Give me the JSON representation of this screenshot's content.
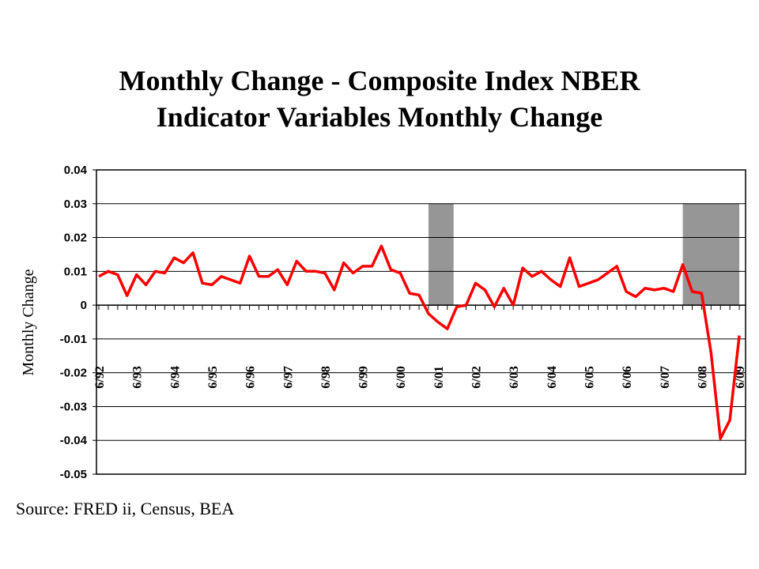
{
  "chart_data": {
    "type": "line",
    "title_line1": "Monthly Change - Composite Index NBER",
    "title_line2": "Indicator Variables Monthly Change",
    "ylabel": "Monthly Change",
    "source": "Source: FRED ii, Census, BEA",
    "ylim": [
      -0.05,
      0.04
    ],
    "yticks": [
      "0.04",
      "0.03",
      "0.02",
      "0.01",
      "0",
      "-0.01",
      "-0.02",
      "-0.03",
      "-0.04",
      "-0.05"
    ],
    "ytick_values": [
      0.04,
      0.03,
      0.02,
      0.01,
      0,
      -0.01,
      -0.02,
      -0.03,
      -0.04,
      -0.05
    ],
    "xlabels": [
      "6/92",
      "6/93",
      "6/94",
      "6/95",
      "6/96",
      "6/97",
      "6/98",
      "6/99",
      "6/00",
      "6/01",
      "6/02",
      "6/03",
      "6/04",
      "6/05",
      "6/06",
      "6/07",
      "6/08",
      "6/09"
    ],
    "grid": "horizontal",
    "line_color": "#ff0000",
    "shade_color": "#969696",
    "recessions": [
      {
        "start": "2001-03",
        "end": "2001-11",
        "top": 0.03
      },
      {
        "start": "2007-12",
        "end": "2009-06",
        "top": 0.03
      }
    ],
    "points": [
      [
        "1992-06",
        0.0085
      ],
      [
        "1992-09",
        0.01
      ],
      [
        "1992-12",
        0.009
      ],
      [
        "1993-03",
        0.0028
      ],
      [
        "1993-06",
        0.009
      ],
      [
        "1993-09",
        0.006
      ],
      [
        "1993-12",
        0.01
      ],
      [
        "1994-03",
        0.0095
      ],
      [
        "1994-06",
        0.014
      ],
      [
        "1994-09",
        0.0125
      ],
      [
        "1994-12",
        0.0155
      ],
      [
        "1995-03",
        0.0065
      ],
      [
        "1995-06",
        0.006
      ],
      [
        "1995-09",
        0.0085
      ],
      [
        "1995-12",
        0.0075
      ],
      [
        "1996-03",
        0.0065
      ],
      [
        "1996-06",
        0.0145
      ],
      [
        "1996-09",
        0.0085
      ],
      [
        "1996-12",
        0.0085
      ],
      [
        "1997-03",
        0.0105
      ],
      [
        "1997-06",
        0.006
      ],
      [
        "1997-09",
        0.013
      ],
      [
        "1997-12",
        0.01
      ],
      [
        "1998-03",
        0.01
      ],
      [
        "1998-06",
        0.0095
      ],
      [
        "1998-09",
        0.0045
      ],
      [
        "1998-12",
        0.0125
      ],
      [
        "1999-03",
        0.0095
      ],
      [
        "1999-06",
        0.0115
      ],
      [
        "1999-09",
        0.0115
      ],
      [
        "1999-12",
        0.0175
      ],
      [
        "2000-03",
        0.0105
      ],
      [
        "2000-06",
        0.0095
      ],
      [
        "2000-09",
        0.0035
      ],
      [
        "2000-12",
        0.003
      ],
      [
        "2001-03",
        -0.0025
      ],
      [
        "2001-06",
        -0.005
      ],
      [
        "2001-09",
        -0.007
      ],
      [
        "2001-12",
        -0.0005
      ],
      [
        "2002-03",
        0.0
      ],
      [
        "2002-06",
        0.0065
      ],
      [
        "2002-09",
        0.0045
      ],
      [
        "2002-12",
        -0.0005
      ],
      [
        "2003-03",
        0.005
      ],
      [
        "2003-06",
        0.0
      ],
      [
        "2003-09",
        0.011
      ],
      [
        "2003-12",
        0.0085
      ],
      [
        "2004-03",
        0.01
      ],
      [
        "2004-06",
        0.0075
      ],
      [
        "2004-09",
        0.0055
      ],
      [
        "2004-12",
        0.014
      ],
      [
        "2005-03",
        0.0055
      ],
      [
        "2005-06",
        0.0065
      ],
      [
        "2005-09",
        0.0075
      ],
      [
        "2005-12",
        0.0095
      ],
      [
        "2006-03",
        0.0115
      ],
      [
        "2006-06",
        0.004
      ],
      [
        "2006-09",
        0.0025
      ],
      [
        "2006-12",
        0.005
      ],
      [
        "2007-03",
        0.0045
      ],
      [
        "2007-06",
        0.005
      ],
      [
        "2007-09",
        0.004
      ],
      [
        "2007-12",
        0.012
      ],
      [
        "2008-03",
        0.004
      ],
      [
        "2008-06",
        0.0035
      ],
      [
        "2008-09",
        -0.014
      ],
      [
        "2008-12",
        -0.0395
      ],
      [
        "2009-03",
        -0.034
      ],
      [
        "2009-06",
        -0.009
      ]
    ]
  }
}
